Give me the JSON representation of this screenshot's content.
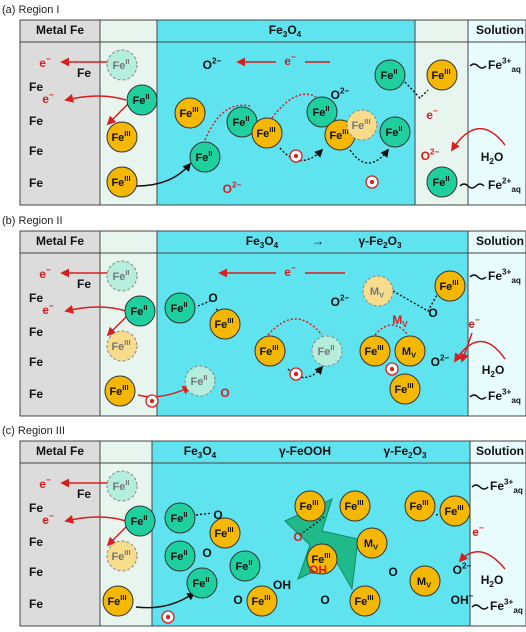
{
  "panels": [
    {
      "caption": "(a) Region I",
      "headers": [
        [
          {
            "t": "Metal Fe"
          }
        ],
        [
          {
            "t": "Fe"
          },
          {
            "sub": "3"
          },
          {
            "t": "O"
          },
          {
            "sub": "4"
          }
        ],
        [
          {
            "t": "Solution"
          }
        ]
      ],
      "ions": [
        {
          "label": [
            {
              "t": "Fe"
            },
            {
              "sup": "II"
            }
          ],
          "color": "#b5eedc",
          "dashed": true
        },
        {
          "label": [
            {
              "t": "Fe"
            },
            {
              "sup": "II"
            }
          ],
          "color": "#1fcf9d"
        },
        {
          "label": [
            {
              "t": "Fe"
            },
            {
              "sup": "III"
            }
          ],
          "color": "#f5b800"
        },
        {
          "label": [
            {
              "t": "Fe"
            },
            {
              "sup": "III"
            }
          ],
          "color": "#f5b800"
        },
        {
          "label": [
            {
              "t": "Fe"
            },
            {
              "sup": "II"
            }
          ],
          "color": "#1fcf9d"
        },
        {
          "label": [
            {
              "t": "Fe"
            },
            {
              "sup": "III"
            }
          ],
          "color": "#f5b800"
        },
        {
          "label": [
            {
              "t": "Fe"
            },
            {
              "sup": "II"
            }
          ],
          "color": "#1fcf9d"
        },
        {
          "label": [
            {
              "t": "Fe"
            },
            {
              "sup": "III"
            }
          ],
          "color": "#f5b800"
        },
        {
          "label": [
            {
              "t": "Fe"
            },
            {
              "sup": "II"
            }
          ],
          "color": "#1fcf9d"
        },
        {
          "label": [
            {
              "t": "Fe"
            },
            {
              "sup": "III"
            }
          ],
          "color": "#f5b800"
        },
        {
          "label": [
            {
              "t": "Fe"
            },
            {
              "sup": "III"
            }
          ],
          "color": "#f7dc8c",
          "dashed": true
        },
        {
          "label": [
            {
              "t": "Fe"
            },
            {
              "sup": "II"
            }
          ],
          "color": "#1fcf9d"
        },
        {
          "label": [
            {
              "t": "Fe"
            },
            {
              "sup": "II"
            }
          ],
          "color": "#1fcf9d"
        },
        {
          "label": [
            {
              "t": "Fe"
            },
            {
              "sup": "III"
            }
          ],
          "color": "#f5b800"
        },
        {
          "label": [
            {
              "t": "Fe"
            },
            {
              "sup": "II"
            }
          ],
          "color": "#1fcf9d"
        }
      ],
      "labels": [
        {
          "text": [
            {
              "t": "e"
            },
            {
              "sup": "−"
            }
          ],
          "color": "#d81e1e"
        },
        {
          "text": [
            {
              "t": "Fe"
            }
          ]
        },
        {
          "text": [
            {
              "t": "Fe"
            }
          ]
        },
        {
          "text": [
            {
              "t": "e"
            },
            {
              "sup": "−"
            }
          ],
          "color": "#d81e1e"
        },
        {
          "text": [
            {
              "t": "Fe"
            }
          ]
        },
        {
          "text": [
            {
              "t": "Fe"
            }
          ]
        },
        {
          "text": [
            {
              "t": "Fe"
            }
          ]
        },
        {
          "text": [
            {
              "t": "O"
            },
            {
              "sup": "2−"
            }
          ]
        },
        {
          "text": [
            {
              "t": "e"
            },
            {
              "sup": "−"
            }
          ],
          "color": "#d81e1e"
        },
        {
          "text": [
            {
              "t": "O"
            },
            {
              "sup": "2−"
            }
          ]
        },
        {
          "text": [
            {
              "t": "O"
            },
            {
              "sup": "2−"
            }
          ],
          "color": "#d81e1e"
        },
        {
          "text": [
            {
              "t": "e"
            },
            {
              "sup": "−"
            }
          ],
          "color": "#d81e1e"
        },
        {
          "text": [
            {
              "t": "O"
            },
            {
              "sup": "2−"
            }
          ],
          "color": "#d81e1e"
        },
        {
          "text": [
            {
              "t": "H"
            },
            {
              "sub": "2"
            },
            {
              "t": "O"
            }
          ]
        },
        {
          "text": [
            {
              "t": "Fe"
            },
            {
              "sup": "3+"
            },
            {
              "sub": "aq"
            }
          ]
        },
        {
          "text": [
            {
              "t": "Fe"
            },
            {
              "sup": "2+"
            },
            {
              "sub": "aq"
            }
          ]
        }
      ]
    },
    {
      "caption": "(b) Region II",
      "headers": [
        [
          {
            "t": "Metal Fe"
          }
        ],
        [
          {
            "t": "Fe"
          },
          {
            "sub": "3"
          },
          {
            "t": "O"
          },
          {
            "sub": "4"
          }
        ],
        [
          {
            "t": "→"
          }
        ],
        [
          {
            "t": "γ-Fe"
          },
          {
            "sub": "2"
          },
          {
            "t": "O"
          },
          {
            "sub": "3"
          }
        ],
        [
          {
            "t": "Solution"
          }
        ]
      ],
      "ions": [
        {
          "label": [
            {
              "t": "Fe"
            },
            {
              "sup": "II"
            }
          ],
          "color": "#b5eedc",
          "dashed": true
        },
        {
          "label": [
            {
              "t": "Fe"
            },
            {
              "sup": "II"
            }
          ],
          "color": "#1fcf9d"
        },
        {
          "label": [
            {
              "t": "Fe"
            },
            {
              "sup": "III"
            }
          ],
          "color": "#f7dc8c",
          "dashed": true
        },
        {
          "label": [
            {
              "t": "Fe"
            },
            {
              "sup": "III"
            }
          ],
          "color": "#f5b800"
        },
        {
          "label": [
            {
              "t": "Fe"
            },
            {
              "sup": "II"
            }
          ],
          "color": "#b5eedc",
          "dashed": true
        },
        {
          "label": [
            {
              "t": "Fe"
            },
            {
              "sup": "II"
            }
          ],
          "color": "#1fcf9d"
        },
        {
          "label": [
            {
              "t": "Fe"
            },
            {
              "sup": "III"
            }
          ],
          "color": "#f5b800"
        },
        {
          "label": [
            {
              "t": "Fe"
            },
            {
              "sup": "III"
            }
          ],
          "color": "#f5b800"
        },
        {
          "label": [
            {
              "t": "Fe"
            },
            {
              "sup": "II"
            }
          ],
          "color": "#b5eedc",
          "dashed": true
        },
        {
          "label": [
            {
              "t": "M"
            },
            {
              "sub": "V"
            }
          ],
          "color": "#f7dc8c",
          "dashed": true
        },
        {
          "label": [
            {
              "t": "Fe"
            },
            {
              "sup": "III"
            }
          ],
          "color": "#f5b800"
        },
        {
          "label": [
            {
              "t": "Fe"
            },
            {
              "sup": "III"
            }
          ],
          "color": "#f5b800"
        },
        {
          "label": [
            {
              "t": "M"
            },
            {
              "sub": "V"
            }
          ],
          "color": "#f5b800"
        },
        {
          "label": [
            {
              "t": "Fe"
            },
            {
              "sup": "III"
            }
          ],
          "color": "#f5b800"
        }
      ],
      "labels": [
        {
          "text": [
            {
              "t": "e"
            },
            {
              "sup": "−"
            }
          ],
          "color": "#d81e1e"
        },
        {
          "text": [
            {
              "t": "Fe"
            }
          ]
        },
        {
          "text": [
            {
              "t": "Fe"
            }
          ]
        },
        {
          "text": [
            {
              "t": "e"
            },
            {
              "sup": "−"
            }
          ],
          "color": "#d81e1e"
        },
        {
          "text": [
            {
              "t": "Fe"
            }
          ]
        },
        {
          "text": [
            {
              "t": "Fe"
            }
          ]
        },
        {
          "text": [
            {
              "t": "Fe"
            }
          ]
        },
        {
          "text": [
            {
              "t": "O"
            }
          ]
        },
        {
          "text": [
            {
              "t": "e"
            },
            {
              "sup": "−"
            }
          ],
          "color": "#d81e1e"
        },
        {
          "text": [
            {
              "t": "O"
            },
            {
              "sup": "2−"
            }
          ]
        },
        {
          "text": [
            {
              "t": "M"
            },
            {
              "sub": "V"
            }
          ],
          "color": "#d81e1e"
        },
        {
          "text": [
            {
              "t": "O"
            }
          ]
        },
        {
          "text": [
            {
              "t": "O"
            },
            {
              "sup": "2−"
            }
          ]
        },
        {
          "text": [
            {
              "t": "e"
            },
            {
              "sup": "−"
            }
          ],
          "color": "#d81e1e"
        },
        {
          "text": [
            {
              "t": "H"
            },
            {
              "sub": "2"
            },
            {
              "t": "O"
            }
          ]
        },
        {
          "text": [
            {
              "t": "O"
            }
          ],
          "color": "#d81e1e"
        },
        {
          "text": [
            {
              "t": "Fe"
            },
            {
              "sup": "3+"
            },
            {
              "sub": "aq"
            }
          ]
        },
        {
          "text": [
            {
              "t": "Fe"
            },
            {
              "sup": "3+"
            },
            {
              "sub": "aq"
            }
          ]
        }
      ]
    },
    {
      "caption": "(c) Region III",
      "headers": [
        [
          {
            "t": "Metal Fe"
          }
        ],
        [
          {
            "t": "Fe"
          },
          {
            "sub": "3"
          },
          {
            "t": "O"
          },
          {
            "sub": "4"
          }
        ],
        [
          {
            "t": "γ-FeOOH"
          }
        ],
        [
          {
            "t": "γ-Fe"
          },
          {
            "sub": "2"
          },
          {
            "t": "O"
          },
          {
            "sub": "3"
          }
        ],
        [
          {
            "t": "Solution"
          }
        ]
      ],
      "ions": [
        {
          "label": [
            {
              "t": "Fe"
            },
            {
              "sup": "II"
            }
          ],
          "color": "#b5eedc",
          "dashed": true
        },
        {
          "label": [
            {
              "t": "Fe"
            },
            {
              "sup": "II"
            }
          ],
          "color": "#1fcf9d"
        },
        {
          "label": [
            {
              "t": "Fe"
            },
            {
              "sup": "III"
            }
          ],
          "color": "#f7dc8c",
          "dashed": true
        },
        {
          "label": [
            {
              "t": "Fe"
            },
            {
              "sup": "III"
            }
          ],
          "color": "#f5b800"
        },
        {
          "label": [
            {
              "t": "Fe"
            },
            {
              "sup": "II"
            }
          ],
          "color": "#1fcf9d"
        },
        {
          "label": [
            {
              "t": "Fe"
            },
            {
              "sup": "II"
            }
          ],
          "color": "#1fcf9d"
        },
        {
          "label": [
            {
              "t": "Fe"
            },
            {
              "sup": "II"
            }
          ],
          "color": "#1fcf9d"
        },
        {
          "label": [
            {
              "t": "Fe"
            },
            {
              "sup": "II"
            }
          ],
          "color": "#1fcf9d"
        },
        {
          "label": [
            {
              "t": "Fe"
            },
            {
              "sup": "III"
            }
          ],
          "color": "#f5b800"
        },
        {
          "label": [
            {
              "t": "Fe"
            },
            {
              "sup": "III"
            }
          ],
          "color": "#f5b800"
        },
        {
          "label": [
            {
              "t": "Fe"
            },
            {
              "sup": "III"
            }
          ],
          "color": "#f5b800"
        },
        {
          "label": [
            {
              "t": "Fe"
            },
            {
              "sup": "III"
            }
          ],
          "color": "#f5b800"
        },
        {
          "label": [
            {
              "t": "Fe"
            },
            {
              "sup": "III"
            }
          ],
          "color": "#f5b800"
        },
        {
          "label": [
            {
              "t": "M"
            },
            {
              "sub": "V"
            }
          ],
          "color": "#f5b800"
        },
        {
          "label": [
            {
              "t": "Fe"
            },
            {
              "sup": "III"
            }
          ],
          "color": "#f5b800"
        },
        {
          "label": [
            {
              "t": "Fe"
            },
            {
              "sup": "III"
            }
          ],
          "color": "#f5b800"
        },
        {
          "label": [
            {
              "t": "Fe"
            },
            {
              "sup": "III"
            }
          ],
          "color": "#f5b800"
        },
        {
          "label": [
            {
              "t": "M"
            },
            {
              "sub": "V"
            }
          ],
          "color": "#f5b800"
        }
      ],
      "labels": [
        {
          "text": [
            {
              "t": "e"
            },
            {
              "sup": "−"
            }
          ],
          "color": "#d81e1e"
        },
        {
          "text": [
            {
              "t": "Fe"
            }
          ]
        },
        {
          "text": [
            {
              "t": "Fe"
            }
          ]
        },
        {
          "text": [
            {
              "t": "e"
            },
            {
              "sup": "−"
            }
          ],
          "color": "#d81e1e"
        },
        {
          "text": [
            {
              "t": "Fe"
            }
          ]
        },
        {
          "text": [
            {
              "t": "Fe"
            }
          ]
        },
        {
          "text": [
            {
              "t": "Fe"
            }
          ]
        },
        {
          "text": [
            {
              "t": "O"
            }
          ]
        },
        {
          "text": [
            {
              "t": "O"
            }
          ]
        },
        {
          "text": [
            {
              "t": "OH"
            }
          ]
        },
        {
          "text": [
            {
              "t": "O"
            }
          ]
        },
        {
          "text": [
            {
              "t": "O"
            }
          ],
          "color": "#d81e1e"
        },
        {
          "text": [
            {
              "t": "OH"
            }
          ],
          "color": "#d81e1e"
        },
        {
          "text": [
            {
              "t": "O"
            }
          ]
        },
        {
          "text": [
            {
              "t": "O"
            }
          ]
        },
        {
          "text": [
            {
              "t": "O"
            },
            {
              "sup": "2−"
            }
          ]
        },
        {
          "text": [
            {
              "t": "OH"
            },
            {
              "sup": "−"
            }
          ]
        },
        {
          "text": [
            {
              "t": "e"
            },
            {
              "sup": "−"
            }
          ],
          "color": "#d81e1e"
        },
        {
          "text": [
            {
              "t": "H"
            },
            {
              "sub": "2"
            },
            {
              "t": "O"
            }
          ]
        },
        {
          "text": [
            {
              "t": "Fe"
            },
            {
              "sup": "3+"
            },
            {
              "sub": "aq"
            }
          ]
        },
        {
          "text": [
            {
              "t": "Fe"
            },
            {
              "sup": "3+"
            },
            {
              "sub": "aq"
            }
          ]
        }
      ]
    }
  ]
}
